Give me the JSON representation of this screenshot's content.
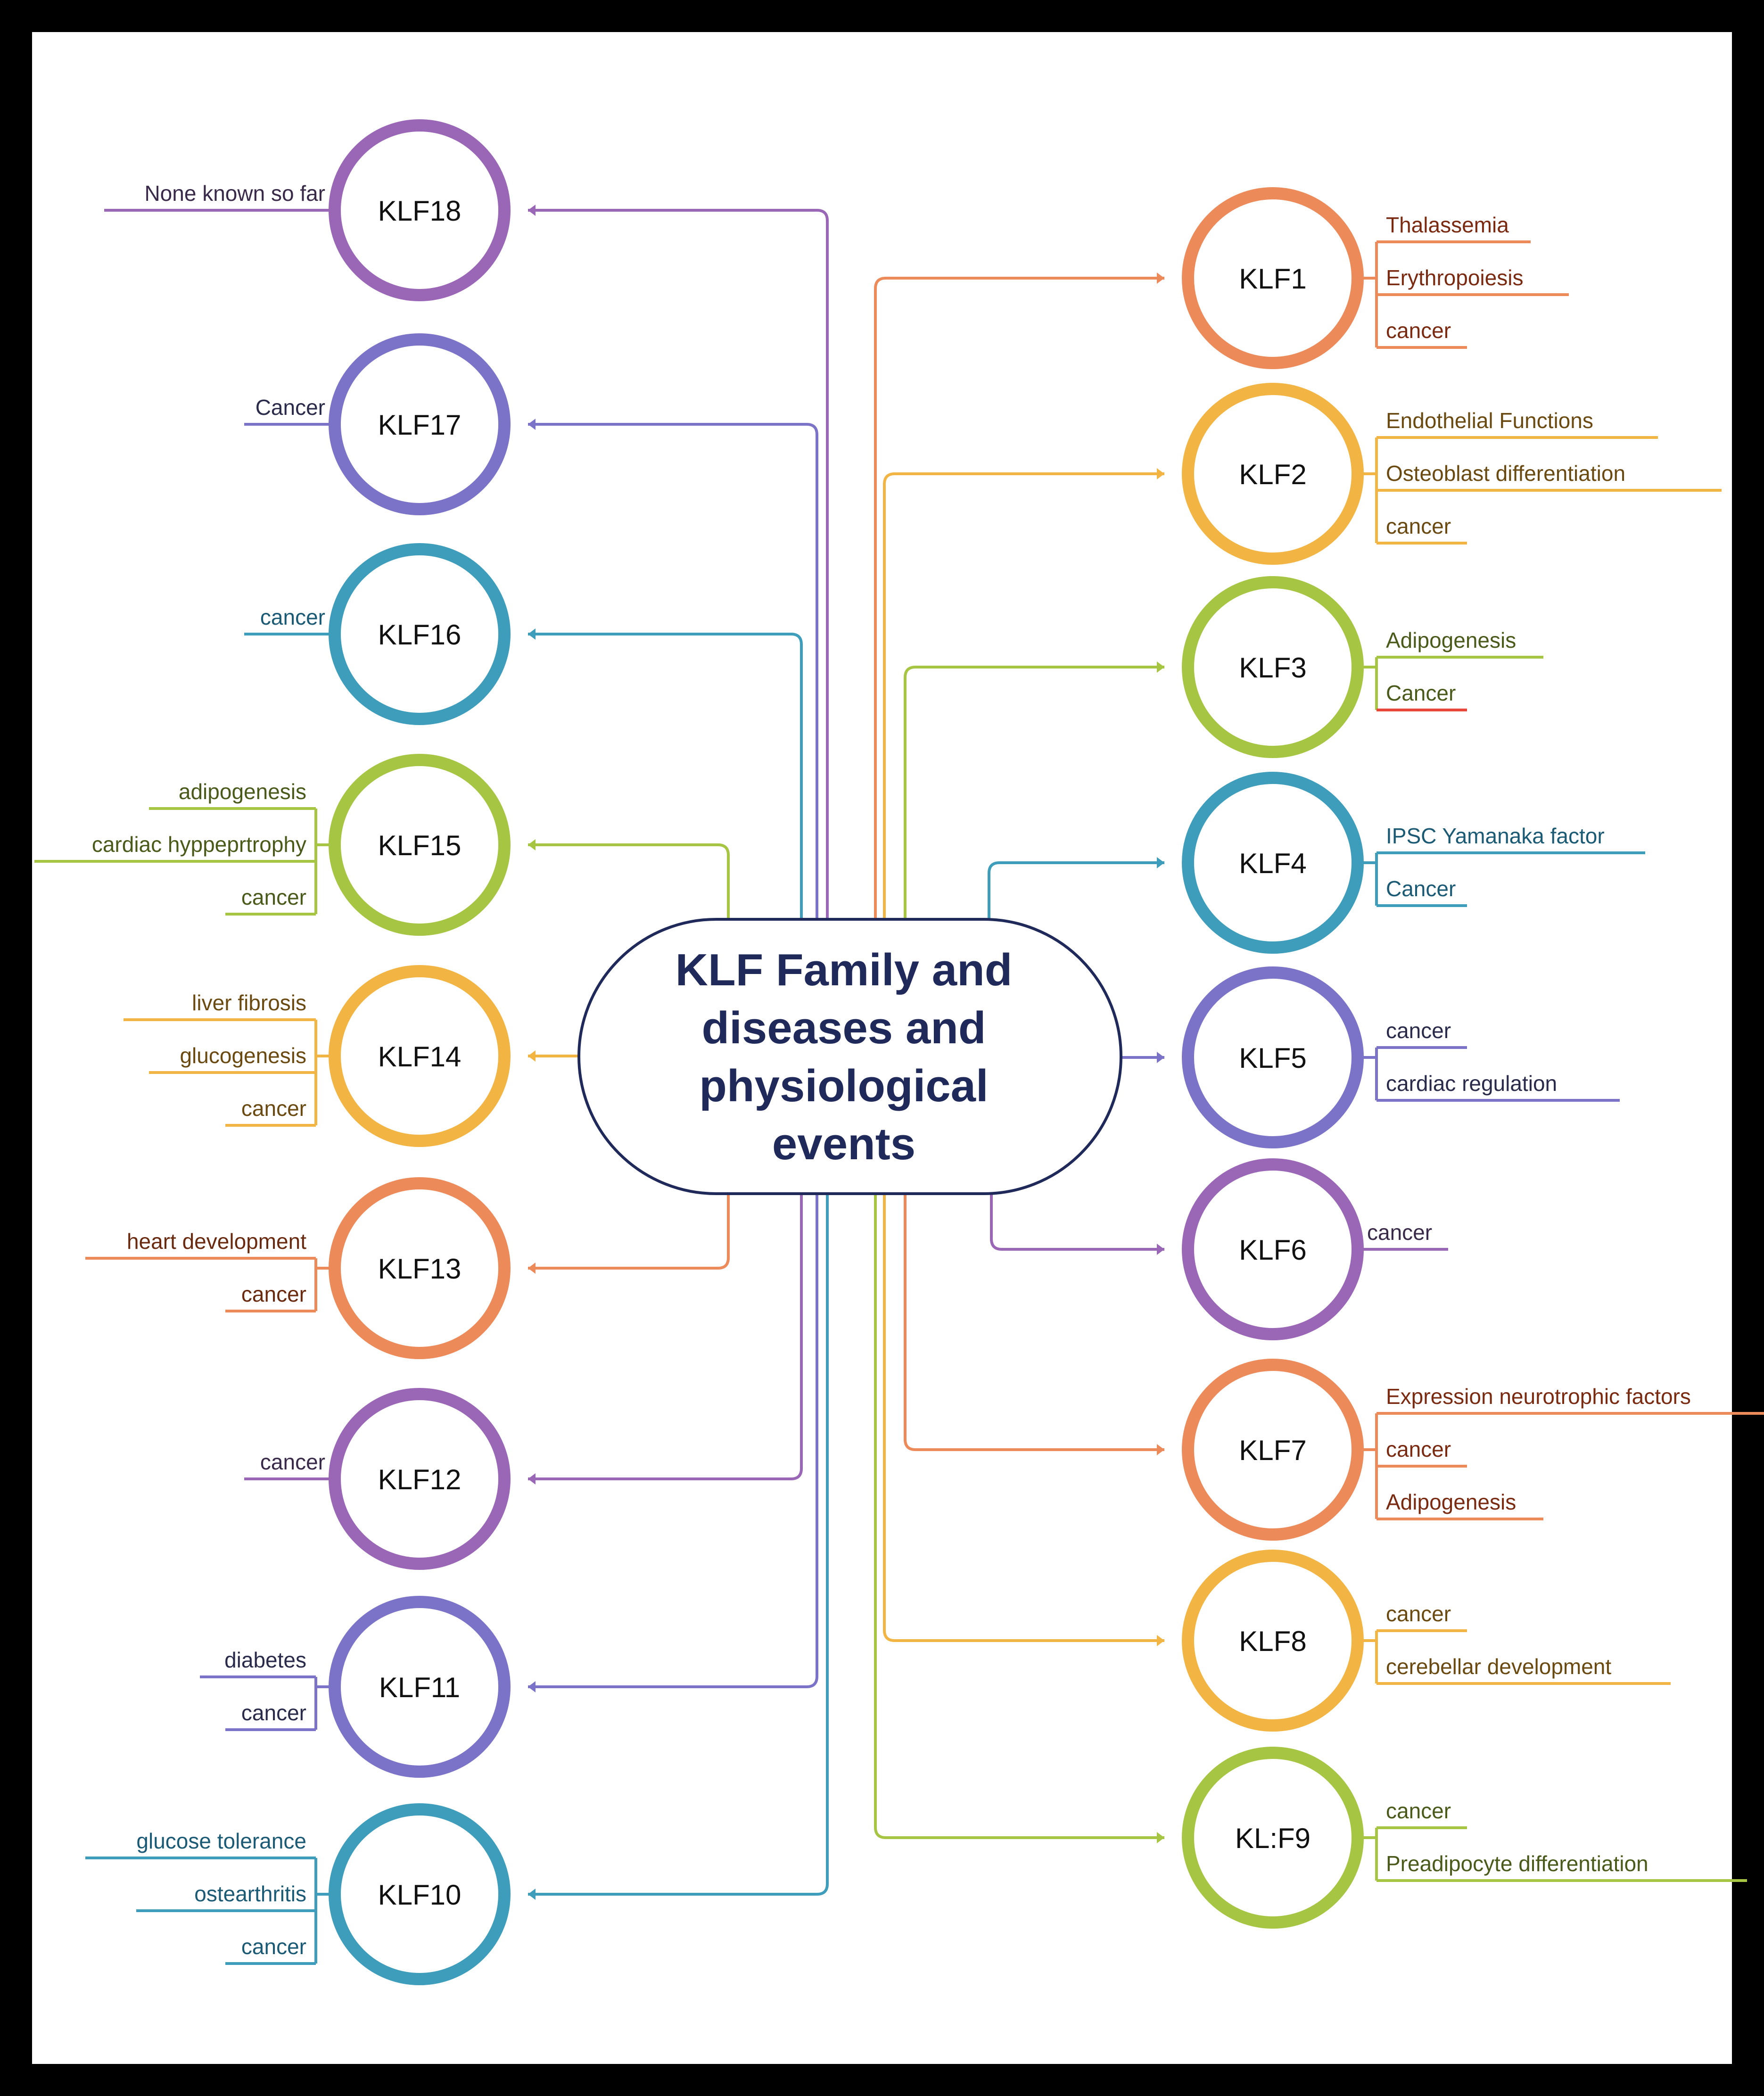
{
  "title": [
    "KLF Family and",
    "diseases and",
    "physiological",
    "events"
  ],
  "colors": {
    "frame": "#000000",
    "background": "#ffffff",
    "center_border": "#1f2a5a",
    "center_text": "#1f2a5a",
    "node_text": "#111111",
    "accent_red": "#e8473c"
  },
  "nodes": [
    {
      "label": "KLF18",
      "color": "#9a66b6",
      "text_color": "#3a2a4a",
      "items": [
        "None known so far"
      ]
    },
    {
      "label": "KLF17",
      "color": "#7a73c7",
      "text_color": "#2a2a4a",
      "items": [
        "Cancer"
      ]
    },
    {
      "label": "KLF16",
      "color": "#3e9dbb",
      "text_color": "#1b5a75",
      "items": [
        "cancer"
      ]
    },
    {
      "label": "KLF15",
      "color": "#a6c542",
      "text_color": "#4a5a1a",
      "items": [
        "adipogenesis",
        "cardiac hyppeprtrophy",
        "cancer"
      ]
    },
    {
      "label": "KLF14",
      "color": "#f2b544",
      "text_color": "#6a4a10",
      "items": [
        "liver fibrosis",
        "glucogenesis",
        "cancer"
      ]
    },
    {
      "label": "KLF13",
      "color": "#ec8a5a",
      "text_color": "#6a2a10",
      "items": [
        "heart development",
        "cancer"
      ]
    },
    {
      "label": "KLF12",
      "color": "#9a66b6",
      "text_color": "#3a2a4a",
      "items": [
        "cancer"
      ]
    },
    {
      "label": "KLF11",
      "color": "#7a73c7",
      "text_color": "#2a2a4a",
      "items": [
        "diabetes",
        "cancer"
      ]
    },
    {
      "label": "KLF10",
      "color": "#3e9dbb",
      "text_color": "#1b5a75",
      "items": [
        "glucose tolerance",
        "ostearthritis",
        "cancer"
      ]
    },
    {
      "label": "KLF1",
      "color": "#ec8a5a",
      "text_color": "#7a2a10",
      "items": [
        "Thalassemia",
        "Erythropoiesis",
        "cancer"
      ]
    },
    {
      "label": "KLF2",
      "color": "#f2b544",
      "text_color": "#6a4a10",
      "items": [
        "Endothelial Functions",
        "Osteoblast differentiation",
        "cancer"
      ]
    },
    {
      "label": "KLF3",
      "color": "#a6c542",
      "text_color": "#4a5a1a",
      "items": [
        "Adipogenesis",
        "Cancer"
      ]
    },
    {
      "label": "KLF4",
      "color": "#3e9dbb",
      "text_color": "#1b5a75",
      "items": [
        "IPSC Yamanaka factor",
        "Cancer"
      ]
    },
    {
      "label": "KLF5",
      "color": "#7a73c7",
      "text_color": "#2a2a4a",
      "items": [
        "cancer",
        "cardiac regulation"
      ]
    },
    {
      "label": "KLF6",
      "color": "#9a66b6",
      "text_color": "#3a2a4a",
      "items": [
        "cancer"
      ]
    },
    {
      "label": "KLF7",
      "color": "#ec8a5a",
      "text_color": "#7a2a10",
      "items": [
        "Expression neurotrophic factors",
        "cancer",
        "Adipogenesis"
      ]
    },
    {
      "label": "KLF8",
      "color": "#f2b544",
      "text_color": "#6a4a10",
      "items": [
        "cancer",
        "cerebellar development"
      ]
    },
    {
      "label": "KL:F9",
      "color": "#a6c542",
      "text_color": "#4a5a1a",
      "items": [
        "cancer",
        "Preadipocyte differentiation"
      ]
    }
  ]
}
